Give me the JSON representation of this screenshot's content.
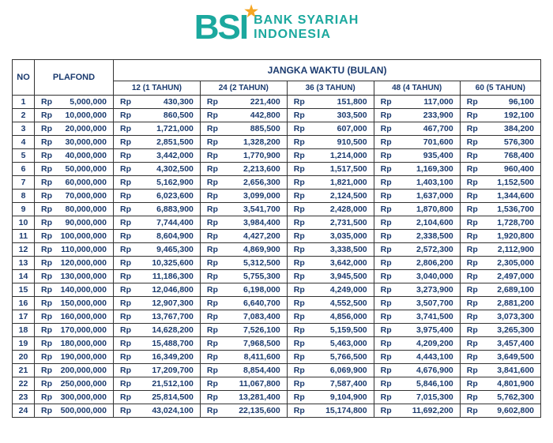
{
  "logo": {
    "abbr": "BSI",
    "line1": "BANK SYARIAH",
    "line2": "INDONESIA",
    "brand_color": "#1ba89e",
    "star_color": "#f5a623"
  },
  "table": {
    "headers": {
      "no": "NO",
      "plafond": "PLAFOND",
      "jangka": "JANGKA WAKTU (BULAN)",
      "cols": [
        "12 (1 TAHUN)",
        "24 (2 TAHUN)",
        "36 (3 TAHUN)",
        "48 (4 TAHUN)",
        "60 (5 TAHUN)"
      ]
    },
    "currency": "Rp",
    "text_color": "#1a3a6e",
    "border_color": "#333333",
    "font_size": 10.5,
    "rows": [
      {
        "no": 1,
        "plafond": "5,000,000",
        "vals": [
          "430,300",
          "221,400",
          "151,800",
          "117,000",
          "96,100"
        ]
      },
      {
        "no": 2,
        "plafond": "10,000,000",
        "vals": [
          "860,500",
          "442,800",
          "303,500",
          "233,900",
          "192,100"
        ]
      },
      {
        "no": 3,
        "plafond": "20,000,000",
        "vals": [
          "1,721,000",
          "885,500",
          "607,000",
          "467,700",
          "384,200"
        ]
      },
      {
        "no": 4,
        "plafond": "30,000,000",
        "vals": [
          "2,851,500",
          "1,328,200",
          "910,500",
          "701,600",
          "576,300"
        ]
      },
      {
        "no": 5,
        "plafond": "40,000,000",
        "vals": [
          "3,442,000",
          "1,770,900",
          "1,214,000",
          "935,400",
          "768,400"
        ]
      },
      {
        "no": 6,
        "plafond": "50,000,000",
        "vals": [
          "4,302,500",
          "2,213,600",
          "1,517,500",
          "1,169,300",
          "960,400"
        ]
      },
      {
        "no": 7,
        "plafond": "60,000,000",
        "vals": [
          "5,162,900",
          "2,656,300",
          "1,821,000",
          "1,403,100",
          "1,152,500"
        ]
      },
      {
        "no": 8,
        "plafond": "70,000,000",
        "vals": [
          "6,023,600",
          "3,099,000",
          "2,124,500",
          "1,637,000",
          "1,344,600"
        ]
      },
      {
        "no": 9,
        "plafond": "80,000,000",
        "vals": [
          "6,883,900",
          "3,541,700",
          "2,428,000",
          "1,870,800",
          "1,536,700"
        ]
      },
      {
        "no": 10,
        "plafond": "90,000,000",
        "vals": [
          "7,744,400",
          "3,984,400",
          "2,731,500",
          "2,104,600",
          "1,728,700"
        ]
      },
      {
        "no": 11,
        "plafond": "100,000,000",
        "vals": [
          "8,604,900",
          "4,427,200",
          "3,035,000",
          "2,338,500",
          "1,920,800"
        ]
      },
      {
        "no": 12,
        "plafond": "110,000,000",
        "vals": [
          "9,465,300",
          "4,869,900",
          "3,338,500",
          "2,572,300",
          "2,112,900"
        ]
      },
      {
        "no": 13,
        "plafond": "120,000,000",
        "vals": [
          "10,325,600",
          "5,312,500",
          "3,642,000",
          "2,806,200",
          "2,305,000"
        ]
      },
      {
        "no": 14,
        "plafond": "130,000,000",
        "vals": [
          "11,186,300",
          "5,755,300",
          "3,945,500",
          "3,040,000",
          "2,497,000"
        ]
      },
      {
        "no": 15,
        "plafond": "140,000,000",
        "vals": [
          "12,046,800",
          "6,198,000",
          "4,249,000",
          "3,273,900",
          "2,689,100"
        ]
      },
      {
        "no": 16,
        "plafond": "150,000,000",
        "vals": [
          "12,907,300",
          "6,640,700",
          "4,552,500",
          "3,507,700",
          "2,881,200"
        ]
      },
      {
        "no": 17,
        "plafond": "160,000,000",
        "vals": [
          "13,767,700",
          "7,083,400",
          "4,856,000",
          "3,741,500",
          "3,073,300"
        ]
      },
      {
        "no": 18,
        "plafond": "170,000,000",
        "vals": [
          "14,628,200",
          "7,526,100",
          "5,159,500",
          "3,975,400",
          "3,265,300"
        ]
      },
      {
        "no": 19,
        "plafond": "180,000,000",
        "vals": [
          "15,488,700",
          "7,968,500",
          "5,463,000",
          "4,209,200",
          "3,457,400"
        ]
      },
      {
        "no": 20,
        "plafond": "190,000,000",
        "vals": [
          "16,349,200",
          "8,411,600",
          "5,766,500",
          "4,443,100",
          "3,649,500"
        ]
      },
      {
        "no": 21,
        "plafond": "200,000,000",
        "vals": [
          "17,209,700",
          "8,854,400",
          "6,069,900",
          "4,676,900",
          "3,841,600"
        ]
      },
      {
        "no": 22,
        "plafond": "250,000,000",
        "vals": [
          "21,512,100",
          "11,067,800",
          "7,587,400",
          "5,846,100",
          "4,801,900"
        ]
      },
      {
        "no": 23,
        "plafond": "300,000,000",
        "vals": [
          "25,814,500",
          "13,281,400",
          "9,104,900",
          "7,015,300",
          "5,762,300"
        ]
      },
      {
        "no": 24,
        "plafond": "500,000,000",
        "vals": [
          "43,024,100",
          "22,135,600",
          "15,174,800",
          "11,692,200",
          "9,602,800"
        ]
      }
    ]
  }
}
